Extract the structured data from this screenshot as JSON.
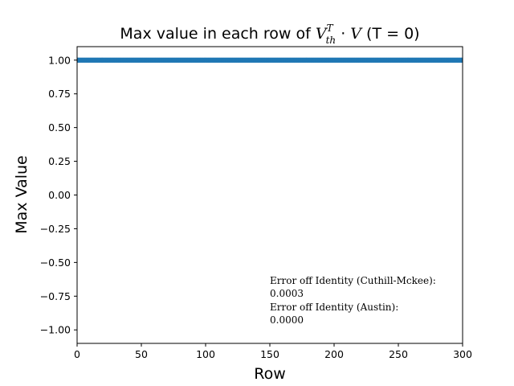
{
  "chart_data": {
    "type": "scatter",
    "title_prefix": "Max value in each row of ",
    "title_math": {
      "base": "V",
      "sup": "T",
      "sub": "th",
      "op": " · ",
      "rhs": "V"
    },
    "title_suffix": " (T = 0)",
    "xlabel": "Row",
    "ylabel": "Max Value",
    "xlim": [
      0,
      300
    ],
    "ylim": [
      -1.1,
      1.1
    ],
    "xticks": [
      0,
      50,
      100,
      150,
      200,
      250,
      300
    ],
    "yticks": [
      1.0,
      0.75,
      0.5,
      0.25,
      0.0,
      -0.25,
      -0.5,
      -0.75,
      -1.0
    ],
    "ytick_labels": [
      "1.00",
      "0.75",
      "0.50",
      "0.25",
      "0.00",
      "−0.25",
      "−0.50",
      "−0.75",
      "−1.00"
    ],
    "series": [
      {
        "x_start": 0,
        "x_end": 300,
        "y": 1.0,
        "color": "#1f77b4"
      }
    ],
    "grid": false,
    "annotations": [
      "Error off Identity (Cuthill-Mckee):",
      "0.0003",
      "Error off Identity (Austin):",
      "0.0000"
    ]
  }
}
